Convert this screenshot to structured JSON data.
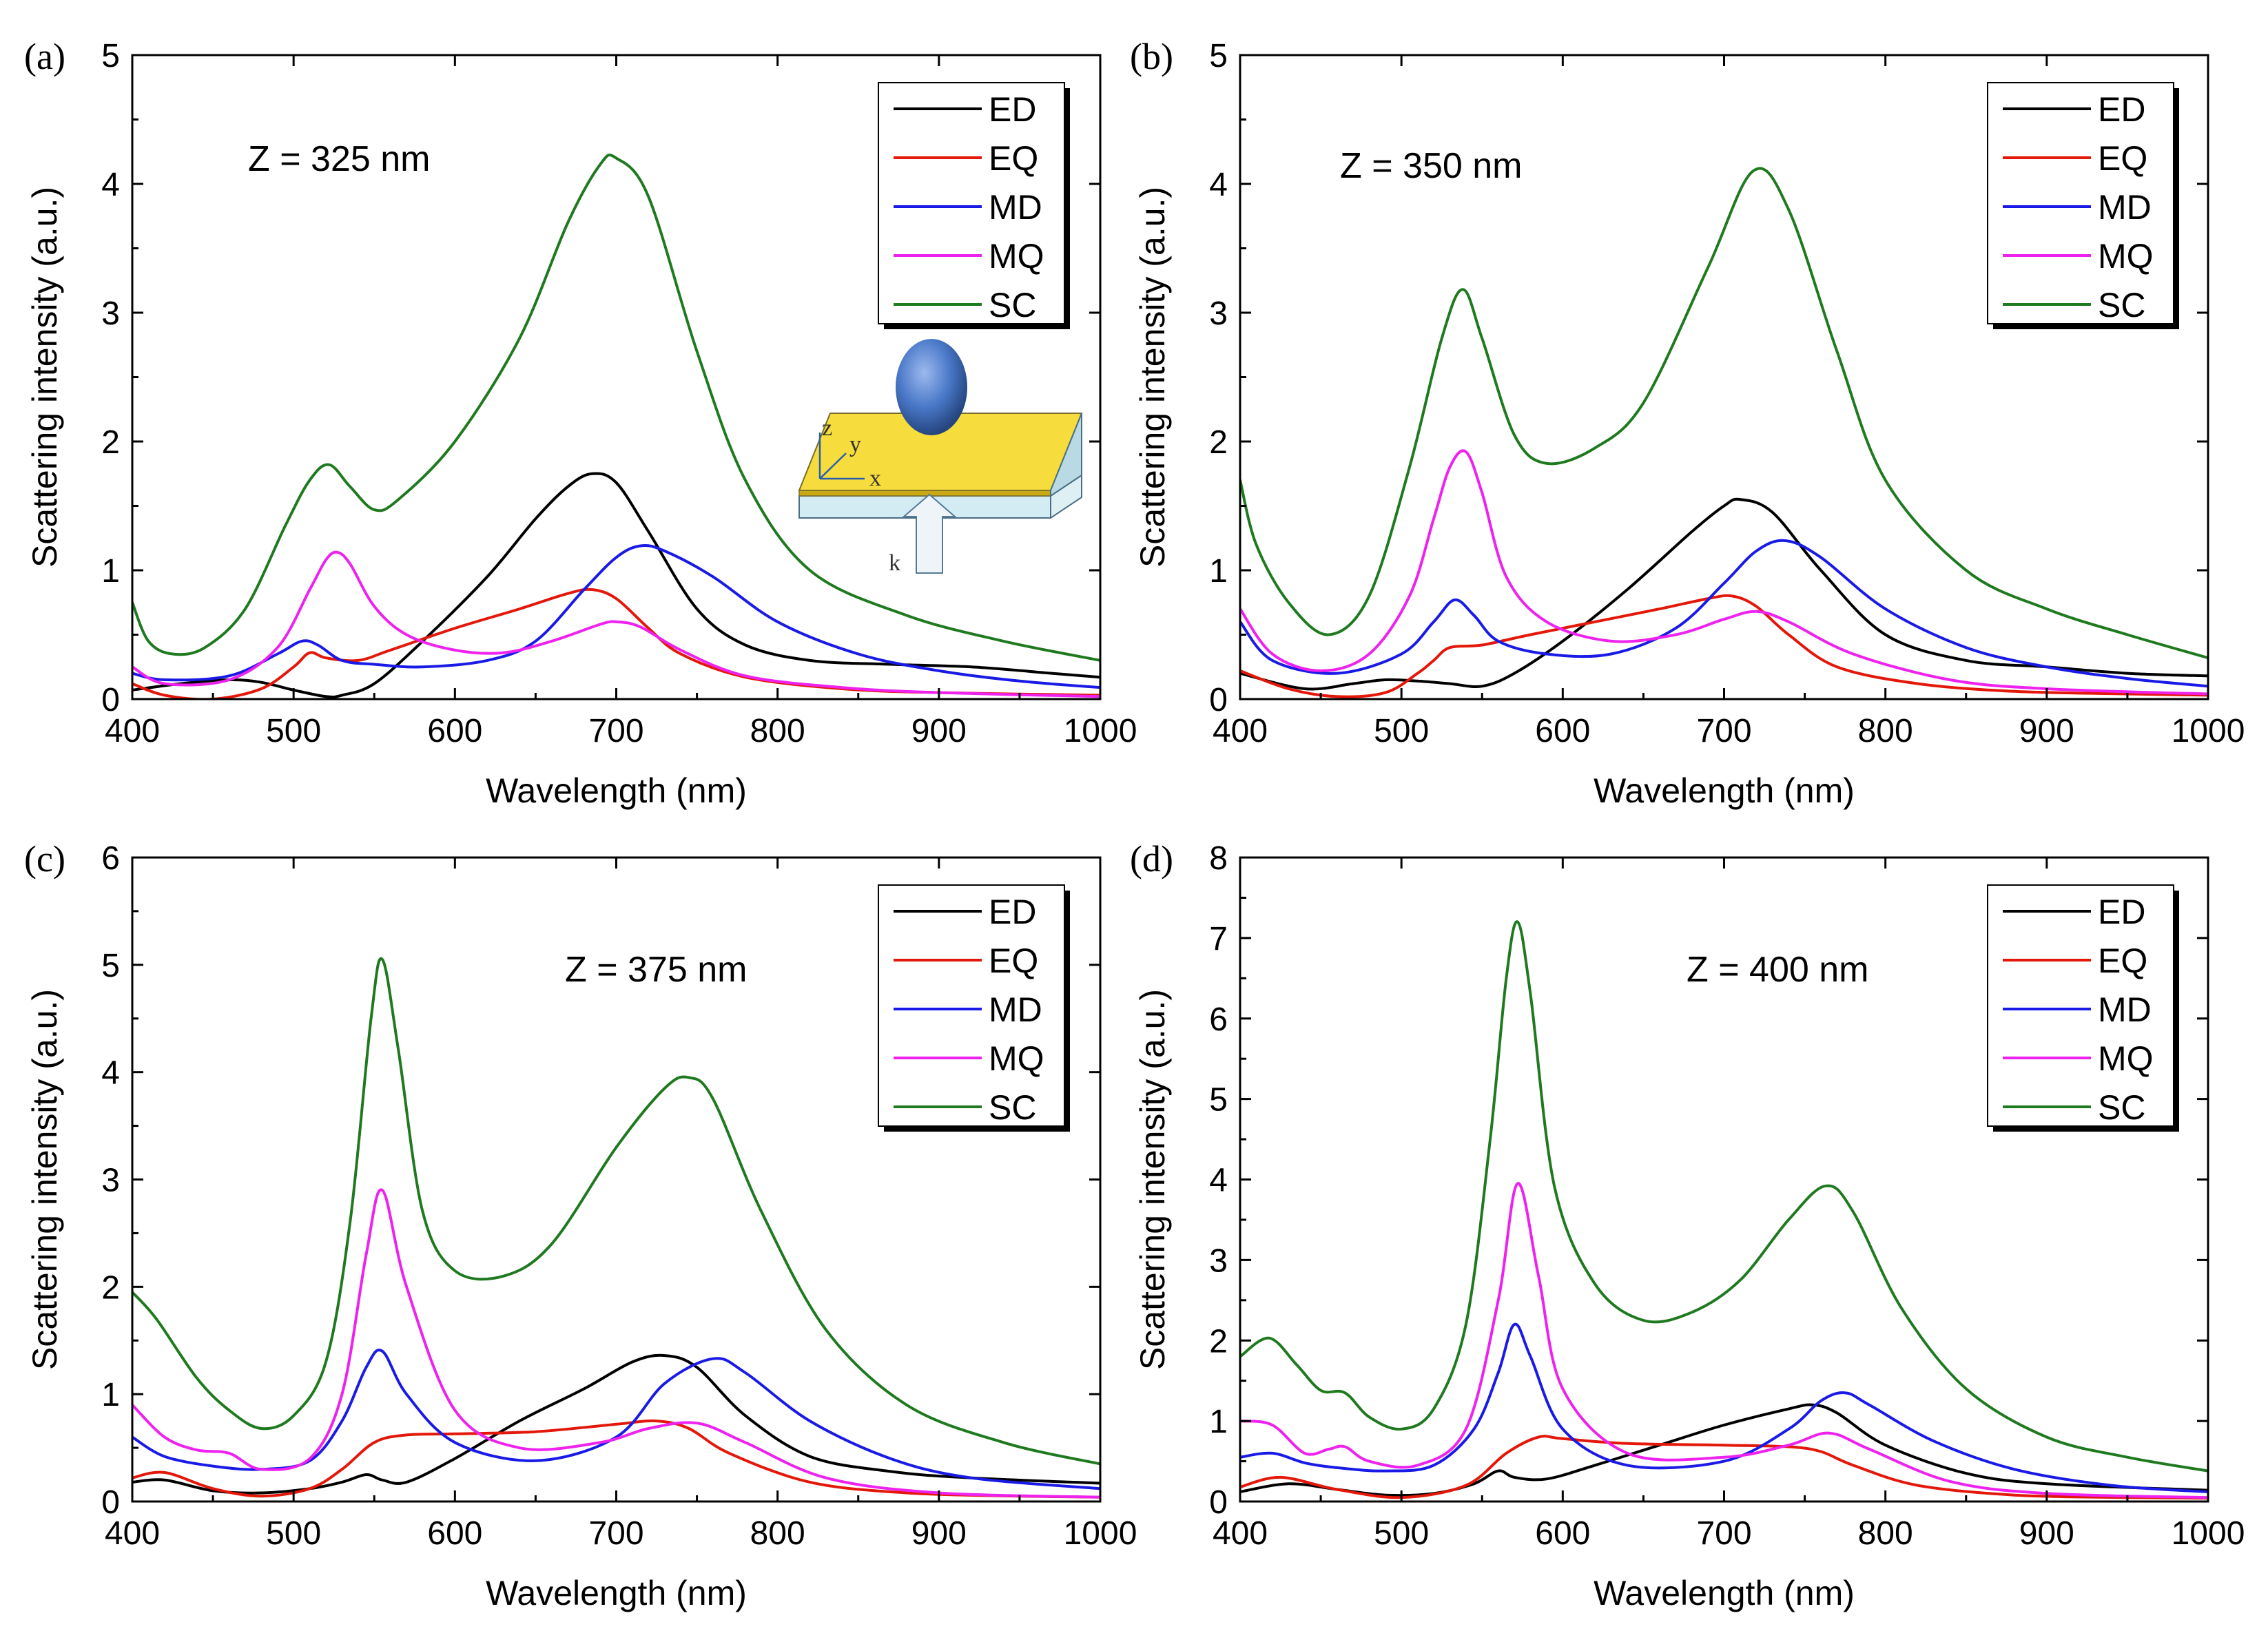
{
  "colors": {
    "ED": "#000000",
    "EQ": "#e3170a",
    "MD": "#1a1ae6",
    "MQ": "#ee22ee",
    "SC": "#1f7a1f"
  },
  "chart_data": [
    {
      "panel": "(a)",
      "type": "line",
      "annotation": "Z = 325 nm",
      "xlabel": "Wavelength (nm)",
      "ylabel": "Scattering intensity (a.u.)",
      "xlim": [
        400,
        1000
      ],
      "ylim": [
        0,
        5
      ],
      "xticks": [
        400,
        500,
        600,
        700,
        800,
        900,
        1000
      ],
      "yticks": [
        0,
        1,
        2,
        3,
        4,
        5
      ],
      "legend": [
        "ED",
        "EQ",
        "MD",
        "MQ",
        "SC"
      ],
      "inset": true,
      "series": [
        {
          "name": "ED",
          "x": [
            400,
            430,
            460,
            480,
            500,
            520,
            530,
            550,
            580,
            620,
            650,
            670,
            685,
            700,
            720,
            750,
            780,
            820,
            870,
            920,
            970,
            1000
          ],
          "y": [
            0.07,
            0.12,
            0.15,
            0.13,
            0.07,
            0.02,
            0.03,
            0.12,
            0.45,
            0.95,
            1.4,
            1.65,
            1.75,
            1.68,
            1.3,
            0.7,
            0.42,
            0.3,
            0.27,
            0.25,
            0.2,
            0.17
          ]
        },
        {
          "name": "EQ",
          "x": [
            400,
            420,
            450,
            480,
            500,
            510,
            520,
            540,
            560,
            600,
            640,
            670,
            685,
            700,
            720,
            740,
            780,
            840,
            900,
            1000
          ],
          "y": [
            0.12,
            0.03,
            0.0,
            0.08,
            0.25,
            0.36,
            0.32,
            0.3,
            0.38,
            0.55,
            0.7,
            0.82,
            0.85,
            0.78,
            0.55,
            0.35,
            0.17,
            0.08,
            0.05,
            0.03
          ]
        },
        {
          "name": "MD",
          "x": [
            400,
            420,
            460,
            490,
            505,
            515,
            530,
            550,
            580,
            620,
            650,
            680,
            700,
            715,
            730,
            760,
            800,
            850,
            900,
            950,
            1000
          ],
          "y": [
            0.2,
            0.15,
            0.18,
            0.35,
            0.45,
            0.42,
            0.3,
            0.27,
            0.25,
            0.3,
            0.45,
            0.85,
            1.1,
            1.19,
            1.15,
            0.95,
            0.6,
            0.35,
            0.22,
            0.14,
            0.09
          ]
        },
        {
          "name": "MQ",
          "x": [
            400,
            420,
            460,
            490,
            510,
            520,
            527,
            535,
            550,
            570,
            600,
            630,
            660,
            690,
            700,
            715,
            740,
            780,
            840,
            900,
            1000
          ],
          "y": [
            0.25,
            0.12,
            0.15,
            0.4,
            0.85,
            1.08,
            1.14,
            1.05,
            0.72,
            0.5,
            0.38,
            0.36,
            0.45,
            0.58,
            0.6,
            0.56,
            0.38,
            0.18,
            0.09,
            0.05,
            0.02
          ]
        },
        {
          "name": "SC",
          "x": [
            400,
            410,
            425,
            445,
            470,
            495,
            510,
            522,
            535,
            550,
            565,
            600,
            640,
            670,
            690,
            700,
            720,
            750,
            780,
            820,
            880,
            940,
            1000
          ],
          "y": [
            0.75,
            0.45,
            0.35,
            0.4,
            0.7,
            1.35,
            1.7,
            1.82,
            1.65,
            1.47,
            1.55,
            2.0,
            2.8,
            3.7,
            4.15,
            4.2,
            3.9,
            2.7,
            1.7,
            1.0,
            0.65,
            0.45,
            0.3
          ]
        }
      ]
    },
    {
      "panel": "(b)",
      "type": "line",
      "annotation": "Z = 350 nm",
      "xlabel": "Wavelength (nm)",
      "ylabel": "Scattering intensity (a.u.)",
      "xlim": [
        400,
        1000
      ],
      "ylim": [
        0,
        5
      ],
      "xticks": [
        400,
        500,
        600,
        700,
        800,
        900,
        1000
      ],
      "yticks": [
        0,
        1,
        2,
        3,
        4,
        5
      ],
      "legend": [
        "ED",
        "EQ",
        "MD",
        "MQ",
        "SC"
      ],
      "inset": false,
      "series": [
        {
          "name": "ED",
          "x": [
            400,
            440,
            470,
            490,
            510,
            530,
            550,
            570,
            600,
            640,
            680,
            700,
            710,
            730,
            760,
            800,
            850,
            900,
            950,
            1000
          ],
          "y": [
            0.2,
            0.08,
            0.12,
            0.15,
            0.14,
            0.12,
            0.1,
            0.2,
            0.45,
            0.85,
            1.3,
            1.5,
            1.55,
            1.45,
            1.0,
            0.5,
            0.3,
            0.25,
            0.2,
            0.18
          ]
        },
        {
          "name": "EQ",
          "x": [
            400,
            430,
            460,
            490,
            510,
            520,
            530,
            550,
            580,
            620,
            660,
            690,
            705,
            720,
            740,
            770,
            820,
            880,
            950,
            1000
          ],
          "y": [
            0.22,
            0.08,
            0.02,
            0.05,
            0.2,
            0.3,
            0.4,
            0.42,
            0.5,
            0.6,
            0.7,
            0.78,
            0.8,
            0.72,
            0.5,
            0.25,
            0.12,
            0.06,
            0.04,
            0.03
          ]
        },
        {
          "name": "MD",
          "x": [
            400,
            420,
            460,
            500,
            520,
            533,
            545,
            560,
            590,
            630,
            670,
            700,
            720,
            738,
            760,
            800,
            850,
            900,
            950,
            1000
          ],
          "y": [
            0.6,
            0.3,
            0.2,
            0.35,
            0.6,
            0.77,
            0.65,
            0.45,
            0.35,
            0.35,
            0.55,
            0.9,
            1.15,
            1.23,
            1.1,
            0.7,
            0.4,
            0.25,
            0.16,
            0.1
          ]
        },
        {
          "name": "MQ",
          "x": [
            400,
            420,
            450,
            480,
            505,
            520,
            530,
            540,
            550,
            565,
            590,
            630,
            670,
            700,
            720,
            740,
            780,
            840,
            900,
            1000
          ],
          "y": [
            0.7,
            0.35,
            0.22,
            0.35,
            0.8,
            1.4,
            1.8,
            1.92,
            1.6,
            0.95,
            0.6,
            0.45,
            0.5,
            0.62,
            0.68,
            0.6,
            0.35,
            0.15,
            0.08,
            0.04
          ]
        },
        {
          "name": "SC",
          "x": [
            400,
            410,
            430,
            455,
            480,
            505,
            525,
            538,
            550,
            570,
            590,
            620,
            650,
            690,
            718,
            740,
            770,
            800,
            850,
            900,
            950,
            1000
          ],
          "y": [
            1.7,
            1.2,
            0.75,
            0.5,
            0.8,
            1.8,
            2.8,
            3.18,
            2.8,
            2.05,
            1.83,
            1.95,
            2.3,
            3.35,
            4.1,
            3.8,
            2.7,
            1.7,
            1.0,
            0.7,
            0.5,
            0.32
          ]
        }
      ]
    },
    {
      "panel": "(c)",
      "type": "line",
      "annotation": "Z = 375 nm",
      "xlabel": "Wavelength (nm)",
      "ylabel": "Scattering intensity (a.u.)",
      "xlim": [
        400,
        1000
      ],
      "ylim": [
        0,
        6
      ],
      "xticks": [
        400,
        500,
        600,
        700,
        800,
        900,
        1000
      ],
      "yticks": [
        0,
        1,
        2,
        3,
        4,
        5,
        6
      ],
      "legend": [
        "ED",
        "EQ",
        "MD",
        "MQ",
        "SC"
      ],
      "inset": false,
      "series": [
        {
          "name": "ED",
          "x": [
            400,
            420,
            450,
            480,
            510,
            530,
            545,
            555,
            570,
            600,
            640,
            680,
            710,
            730,
            750,
            780,
            820,
            870,
            920,
            1000
          ],
          "y": [
            0.18,
            0.2,
            0.1,
            0.08,
            0.12,
            0.18,
            0.25,
            0.2,
            0.18,
            0.4,
            0.75,
            1.05,
            1.3,
            1.36,
            1.25,
            0.8,
            0.42,
            0.28,
            0.22,
            0.17
          ]
        },
        {
          "name": "EQ",
          "x": [
            400,
            420,
            450,
            480,
            510,
            530,
            550,
            570,
            600,
            650,
            700,
            725,
            745,
            770,
            820,
            880,
            950,
            1000
          ],
          "y": [
            0.22,
            0.27,
            0.12,
            0.05,
            0.12,
            0.3,
            0.55,
            0.62,
            0.63,
            0.65,
            0.72,
            0.75,
            0.68,
            0.45,
            0.18,
            0.08,
            0.05,
            0.04
          ]
        },
        {
          "name": "MD",
          "x": [
            400,
            420,
            450,
            480,
            510,
            530,
            545,
            555,
            570,
            600,
            650,
            700,
            730,
            760,
            780,
            820,
            870,
            920,
            1000
          ],
          "y": [
            0.6,
            0.42,
            0.33,
            0.3,
            0.38,
            0.75,
            1.25,
            1.4,
            1.0,
            0.55,
            0.38,
            0.6,
            1.1,
            1.33,
            1.2,
            0.75,
            0.4,
            0.22,
            0.12
          ]
        },
        {
          "name": "MQ",
          "x": [
            400,
            420,
            440,
            460,
            480,
            510,
            530,
            545,
            555,
            570,
            600,
            640,
            690,
            720,
            750,
            780,
            830,
            900,
            1000
          ],
          "y": [
            0.9,
            0.6,
            0.48,
            0.45,
            0.3,
            0.4,
            1.0,
            2.3,
            2.9,
            2.0,
            0.85,
            0.5,
            0.55,
            0.68,
            0.73,
            0.55,
            0.22,
            0.08,
            0.04
          ]
        },
        {
          "name": "SC",
          "x": [
            400,
            415,
            440,
            460,
            480,
            500,
            520,
            535,
            548,
            555,
            565,
            580,
            600,
            630,
            660,
            700,
            730,
            745,
            760,
            790,
            830,
            880,
            940,
            1000
          ],
          "y": [
            1.95,
            1.7,
            1.15,
            0.85,
            0.68,
            0.8,
            1.3,
            2.6,
            4.5,
            5.05,
            4.2,
            2.7,
            2.15,
            2.1,
            2.4,
            3.3,
            3.85,
            3.95,
            3.75,
            2.7,
            1.6,
            0.9,
            0.55,
            0.35
          ]
        }
      ]
    },
    {
      "panel": "(d)",
      "type": "line",
      "annotation": "Z = 400 nm",
      "xlabel": "Wavelength (nm)",
      "ylabel": "Scattering intensity (a.u.)",
      "xlim": [
        400,
        1000
      ],
      "ylim": [
        0,
        8
      ],
      "xticks": [
        400,
        500,
        600,
        700,
        800,
        900,
        1000
      ],
      "yticks": [
        0,
        1,
        2,
        3,
        4,
        5,
        6,
        7,
        8
      ],
      "legend": [
        "ED",
        "EQ",
        "MD",
        "MQ",
        "SC"
      ],
      "inset": false,
      "series": [
        {
          "name": "ED",
          "x": [
            400,
            430,
            460,
            490,
            520,
            545,
            560,
            570,
            590,
            620,
            660,
            700,
            740,
            755,
            770,
            800,
            850,
            900,
            1000
          ],
          "y": [
            0.12,
            0.22,
            0.15,
            0.08,
            0.1,
            0.22,
            0.38,
            0.3,
            0.28,
            0.45,
            0.7,
            0.95,
            1.15,
            1.2,
            1.1,
            0.7,
            0.35,
            0.22,
            0.14
          ]
        },
        {
          "name": "EQ",
          "x": [
            400,
            425,
            460,
            500,
            540,
            565,
            585,
            600,
            640,
            700,
            740,
            760,
            780,
            820,
            880,
            950,
            1000
          ],
          "y": [
            0.18,
            0.3,
            0.15,
            0.05,
            0.2,
            0.6,
            0.8,
            0.78,
            0.72,
            0.7,
            0.68,
            0.62,
            0.45,
            0.2,
            0.08,
            0.05,
            0.04
          ]
        },
        {
          "name": "MD",
          "x": [
            400,
            420,
            440,
            460,
            490,
            520,
            545,
            560,
            570,
            580,
            600,
            640,
            700,
            740,
            760,
            775,
            790,
            830,
            880,
            940,
            1000
          ],
          "y": [
            0.55,
            0.6,
            0.48,
            0.42,
            0.38,
            0.45,
            0.9,
            1.6,
            2.2,
            1.8,
            0.9,
            0.45,
            0.5,
            0.9,
            1.25,
            1.35,
            1.2,
            0.75,
            0.4,
            0.2,
            0.12
          ]
        },
        {
          "name": "MQ",
          "x": [
            400,
            420,
            440,
            455,
            465,
            480,
            510,
            540,
            560,
            572,
            585,
            600,
            640,
            700,
            740,
            765,
            790,
            840,
            900,
            1000
          ],
          "y": [
            1.0,
            0.95,
            0.6,
            0.65,
            0.68,
            0.5,
            0.45,
            0.9,
            2.5,
            3.95,
            2.8,
            1.4,
            0.6,
            0.55,
            0.7,
            0.85,
            0.65,
            0.25,
            0.1,
            0.05
          ]
        },
        {
          "name": "SC",
          "x": [
            400,
            418,
            435,
            450,
            465,
            480,
            500,
            520,
            540,
            555,
            565,
            572,
            580,
            595,
            620,
            650,
            680,
            710,
            740,
            763,
            780,
            810,
            850,
            900,
            950,
            1000
          ],
          "y": [
            1.8,
            2.03,
            1.7,
            1.38,
            1.35,
            1.05,
            0.9,
            1.15,
            2.2,
            4.5,
            6.5,
            7.2,
            6.3,
            3.9,
            2.7,
            2.25,
            2.35,
            2.75,
            3.5,
            3.92,
            3.6,
            2.4,
            1.4,
            0.8,
            0.55,
            0.38
          ]
        }
      ]
    }
  ],
  "inset_labels": {
    "z": "z",
    "y": "y",
    "x": "x",
    "k": "k"
  }
}
